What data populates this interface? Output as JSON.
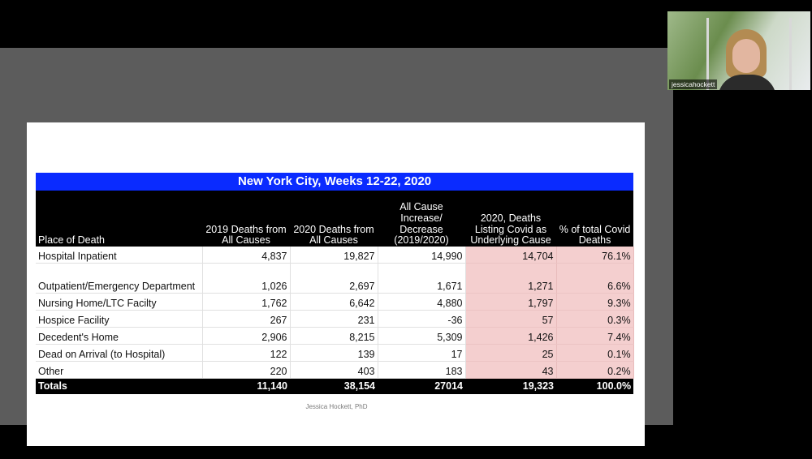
{
  "table": {
    "title": "New York City, Weeks 12-22, 2020",
    "headers": [
      "Place of Death",
      "2019 Deaths from All Causes",
      "2020 Deaths from All Causes",
      "All Cause Increase/ Decrease (2019/2020)",
      "2020, Deaths Listing Covid as Underlying Cause",
      "% of total Covid Deaths"
    ],
    "rows": [
      [
        "Hospital Inpatient",
        "4,837",
        "19,827",
        "14,990",
        "14,704",
        "76.1%"
      ],
      [
        "Outpatient/Emergency Department",
        "1,026",
        "2,697",
        "1,671",
        "1,271",
        "6.6%"
      ],
      [
        "Nursing Home/LTC Facilty",
        "1,762",
        "6,642",
        "4,880",
        "1,797",
        "9.3%"
      ],
      [
        "Hospice Facility",
        "267",
        "231",
        "-36",
        "57",
        "0.3%"
      ],
      [
        "Decedent's Home",
        "2,906",
        "8,215",
        "5,309",
        "1,426",
        "7.4%"
      ],
      [
        "Dead on Arrival (to Hospital)",
        "122",
        "139",
        "17",
        "25",
        "0.1%"
      ],
      [
        "Other",
        "220",
        "403",
        "183",
        "43",
        "0.2%"
      ]
    ],
    "totals": [
      "Totals",
      "11,140",
      "38,154",
      "27014",
      "19,323",
      "100.0%"
    ]
  },
  "footer_credit": "Jessica Hockett, PhD",
  "webcam": {
    "participant_name": "jessicahockett"
  },
  "colors": {
    "title_bar": "#0a2bff",
    "header_bg": "#000000",
    "highlight": "#f4cfcf"
  }
}
